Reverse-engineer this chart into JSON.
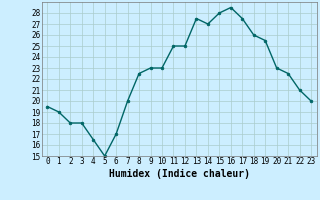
{
  "x": [
    0,
    1,
    2,
    3,
    4,
    5,
    6,
    7,
    8,
    9,
    10,
    11,
    12,
    13,
    14,
    15,
    16,
    17,
    18,
    19,
    20,
    21,
    22,
    23
  ],
  "y": [
    19.5,
    19.0,
    18.0,
    18.0,
    16.5,
    15.0,
    17.0,
    20.0,
    22.5,
    23.0,
    23.0,
    25.0,
    25.0,
    27.5,
    27.0,
    28.0,
    28.5,
    27.5,
    26.0,
    25.5,
    23.0,
    22.5,
    21.0,
    20.0
  ],
  "line_color": "#006666",
  "marker": "o",
  "marker_size": 2.0,
  "line_width": 1.0,
  "background_color": "#cceeff",
  "grid_color": "#aacccc",
  "xlabel": "Humidex (Indice chaleur)",
  "ylim": [
    15,
    29
  ],
  "xlim": [
    -0.5,
    23.5
  ],
  "yticks": [
    15,
    16,
    17,
    18,
    19,
    20,
    21,
    22,
    23,
    24,
    25,
    26,
    27,
    28
  ],
  "xtick_labels": [
    "0",
    "1",
    "2",
    "3",
    "4",
    "5",
    "6",
    "7",
    "8",
    "9",
    "10",
    "11",
    "12",
    "13",
    "14",
    "15",
    "16",
    "17",
    "18",
    "19",
    "20",
    "21",
    "22",
    "23"
  ],
  "tick_fontsize": 5.5,
  "xlabel_fontsize": 7.0,
  "xlabel_fontweight": "bold"
}
